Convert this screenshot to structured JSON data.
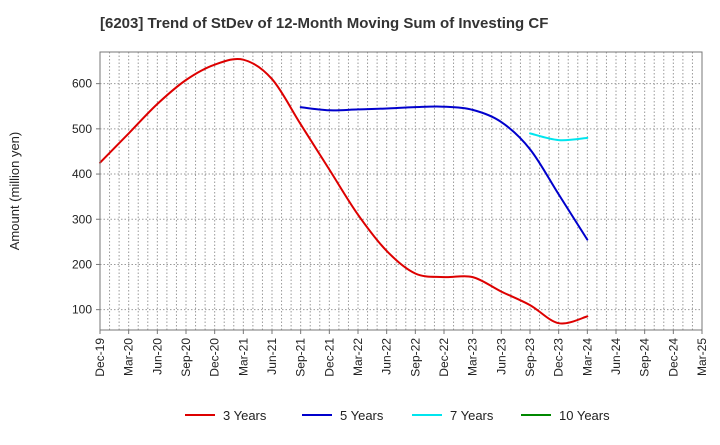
{
  "chart_data": {
    "type": "line",
    "title": "[6203]  Trend of StDev of 12-Month Moving Sum of Investing CF",
    "xlabel": "",
    "ylabel": "Amount (million yen)",
    "ylim": [
      55,
      670
    ],
    "yticks": [
      100,
      200,
      300,
      400,
      500,
      600
    ],
    "xlim": [
      "Dec-19",
      "Mar-25"
    ],
    "x_tick_labels": [
      "Dec-19",
      "Mar-20",
      "Jun-20",
      "Sep-20",
      "Dec-20",
      "Mar-21",
      "Jun-21",
      "Sep-21",
      "Dec-21",
      "Mar-22",
      "Jun-22",
      "Sep-22",
      "Dec-22",
      "Mar-23",
      "Jun-23",
      "Sep-23",
      "Dec-23",
      "Mar-24",
      "Jun-24",
      "Sep-24",
      "Dec-24",
      "Mar-25"
    ],
    "grid": true,
    "legend_position": "bottom",
    "series": [
      {
        "name": "3 Years",
        "color": "#dd0000",
        "points": [
          [
            "Dec-19",
            425
          ],
          [
            "Mar-20",
            490
          ],
          [
            "Jun-20",
            555
          ],
          [
            "Sep-20",
            608
          ],
          [
            "Dec-20",
            642
          ],
          [
            "Mar-21",
            653
          ],
          [
            "Jun-21",
            610
          ],
          [
            "Sep-21",
            510
          ],
          [
            "Dec-21",
            410
          ],
          [
            "Mar-22",
            310
          ],
          [
            "Jun-22",
            230
          ],
          [
            "Sep-22",
            180
          ],
          [
            "Dec-22",
            172
          ],
          [
            "Mar-23",
            172
          ],
          [
            "Jun-23",
            140
          ],
          [
            "Sep-23",
            110
          ],
          [
            "Dec-23",
            70
          ],
          [
            "Mar-24",
            85
          ]
        ]
      },
      {
        "name": "5 Years",
        "color": "#0000cc",
        "points": [
          [
            "Sep-21",
            548
          ],
          [
            "Dec-21",
            541
          ],
          [
            "Mar-22",
            543
          ],
          [
            "Jun-22",
            545
          ],
          [
            "Sep-22",
            548
          ],
          [
            "Dec-22",
            549
          ],
          [
            "Mar-23",
            542
          ],
          [
            "Jun-23",
            515
          ],
          [
            "Sep-23",
            455
          ],
          [
            "Dec-23",
            355
          ],
          [
            "Mar-24",
            255
          ]
        ]
      },
      {
        "name": "7 Years",
        "color": "#00e5ee",
        "points": [
          [
            "Sep-23",
            490
          ],
          [
            "Dec-23",
            475
          ],
          [
            "Mar-24",
            480
          ]
        ]
      },
      {
        "name": "10 Years",
        "color": "#008800",
        "points": []
      }
    ]
  }
}
